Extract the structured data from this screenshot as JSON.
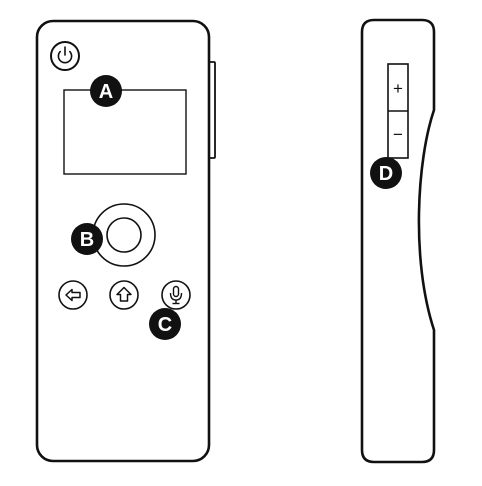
{
  "colors": {
    "line": "#111111",
    "callout_fill": "#111111",
    "callout_text": "#ffffff",
    "background": "#ffffff"
  },
  "callouts": {
    "a": "A",
    "b": "B",
    "c": "C",
    "d": "D"
  },
  "front_view": {
    "power_button": {
      "icon": "power-icon"
    },
    "back_button": {
      "icon": "back-arrow-icon"
    },
    "home_button": {
      "icon": "home-icon"
    },
    "voice_button": {
      "icon": "microphone-icon"
    }
  },
  "side_view": {
    "volume_up_label": "+",
    "volume_down_label": "−"
  }
}
